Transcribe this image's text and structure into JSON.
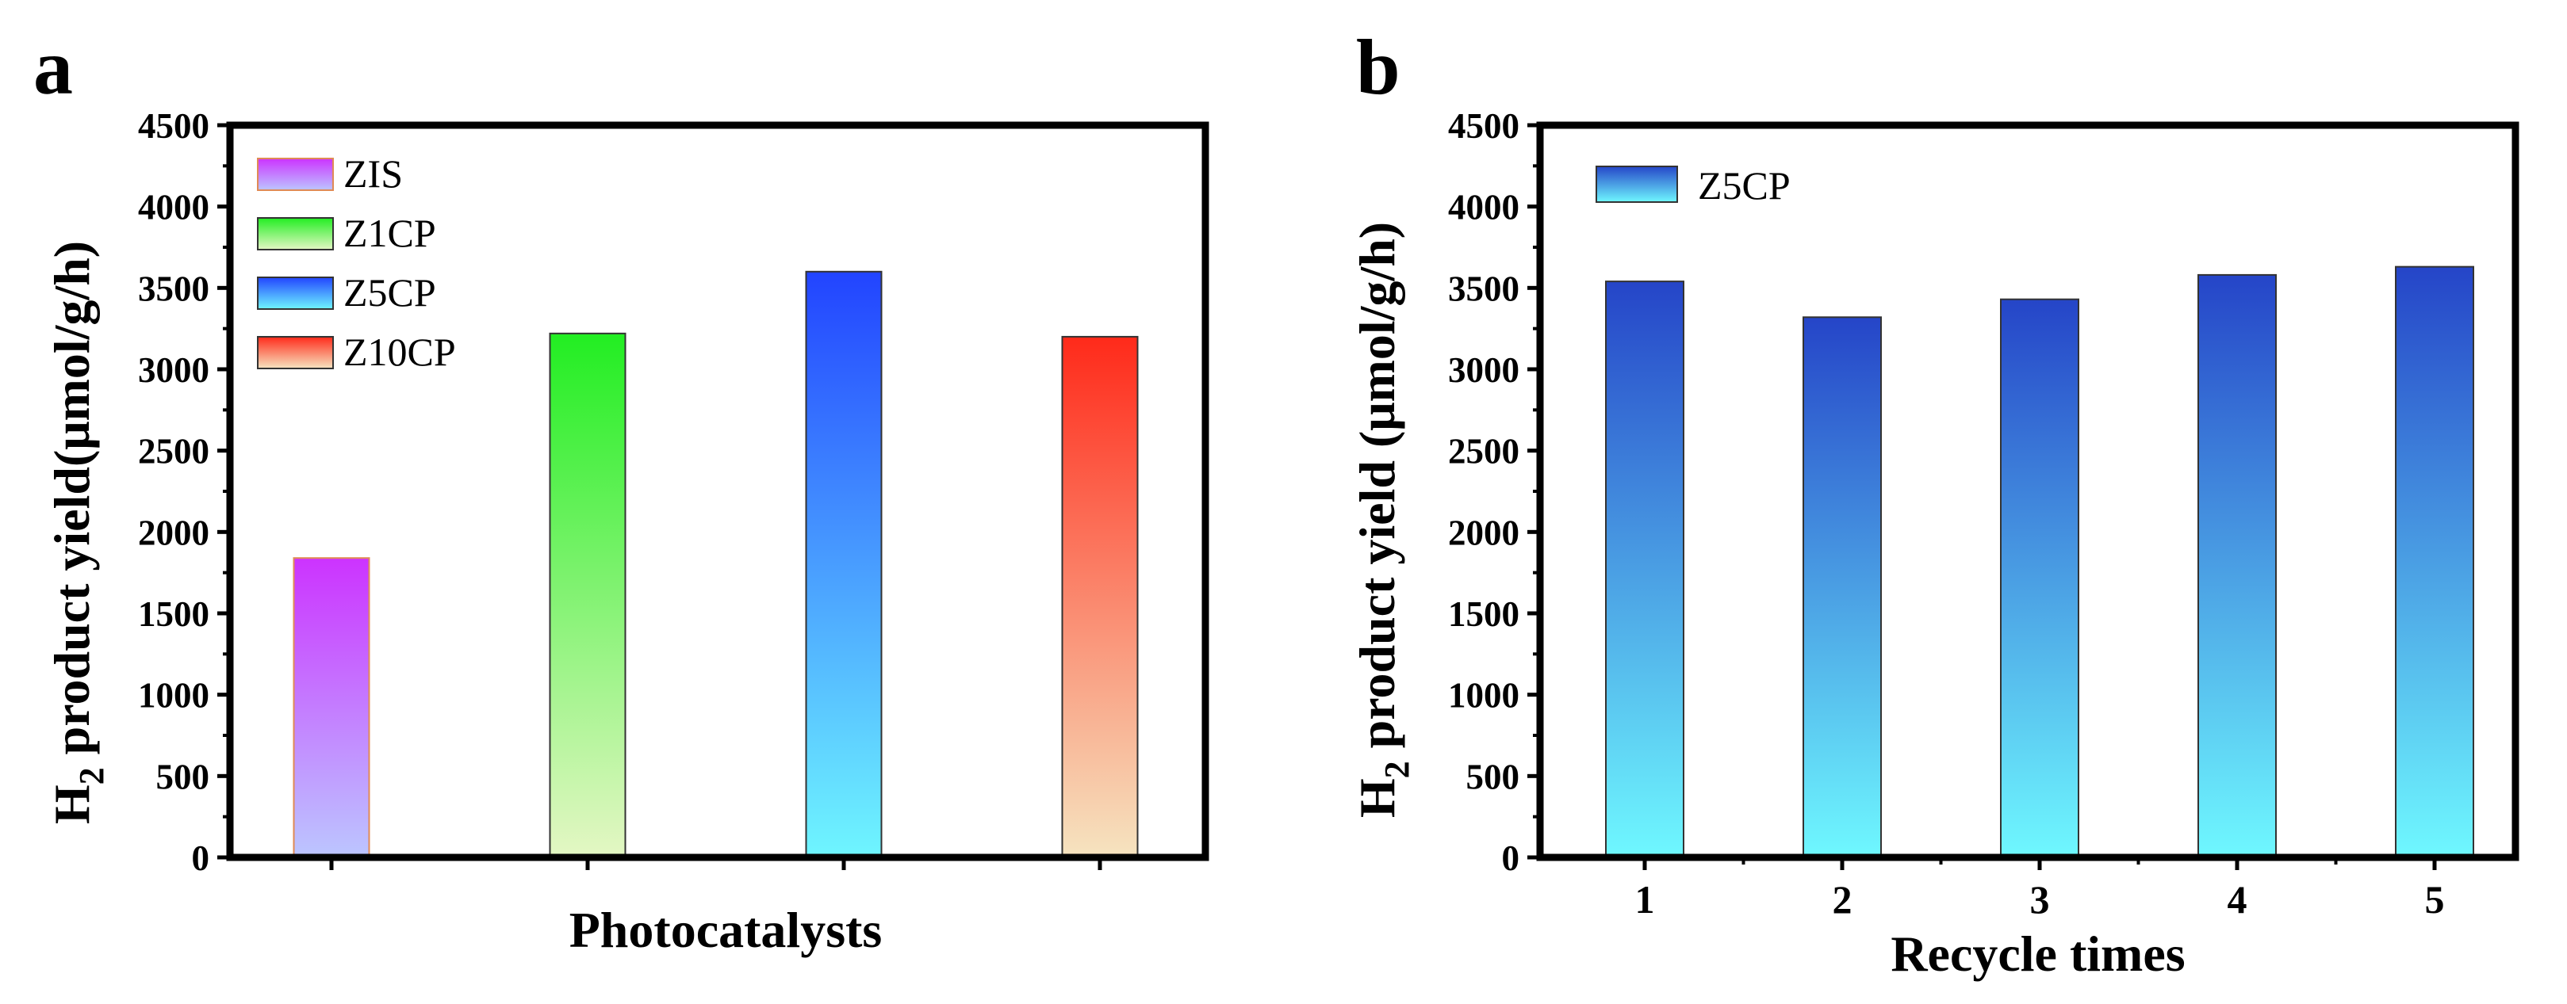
{
  "chart_data": [
    {
      "panel": "a",
      "type": "bar",
      "categories": [
        "ZIS",
        "Z1CP",
        "Z5CP",
        "Z10CP"
      ],
      "values": [
        1840,
        3220,
        3600,
        3200
      ],
      "xlabel": "Photocatalysts",
      "ylabel_main": "H",
      "ylabel_sub": "2",
      "ylabel_rest": " product yield(μmol/g/h)",
      "ylim": [
        0,
        4500
      ],
      "yticks": [
        "0",
        "500",
        "1000",
        "1500",
        "2000",
        "2500",
        "3000",
        "3500",
        "4000",
        "4500"
      ],
      "show_xtick_labels": false,
      "legend": [
        "ZIS",
        "Z1CP",
        "Z5CP",
        "Z10CP"
      ],
      "legend_position": "top-left",
      "colors": [
        {
          "top": "#cc33ff",
          "bottom": "#bcc6ff",
          "stroke": "#e08a55"
        },
        {
          "top": "#22ee22",
          "bottom": "#e4f7c4",
          "stroke": "#333333"
        },
        {
          "top": "#2244ff",
          "bottom": "#6ff6ff",
          "stroke": "#333333"
        },
        {
          "top": "#ff2a1a",
          "bottom": "#f6e4c0",
          "stroke": "#333333"
        }
      ]
    },
    {
      "panel": "b",
      "type": "bar",
      "categories": [
        "1",
        "2",
        "3",
        "4",
        "5"
      ],
      "values": [
        3540,
        3320,
        3430,
        3580,
        3630
      ],
      "xlabel": "Recycle times",
      "ylabel_main": "H",
      "ylabel_sub": "2",
      "ylabel_rest": " product yield (μmol/g/h)",
      "ylim": [
        0,
        4500
      ],
      "yticks": [
        "0",
        "500",
        "1000",
        "1500",
        "2000",
        "2500",
        "3000",
        "3500",
        "4000",
        "4500"
      ],
      "show_xtick_labels": true,
      "legend": [
        "Z5CP"
      ],
      "legend_position": "top-left",
      "colors": [
        {
          "top": "#2545c8",
          "bottom": "#6ff8ff",
          "stroke": "#333333"
        }
      ]
    }
  ]
}
